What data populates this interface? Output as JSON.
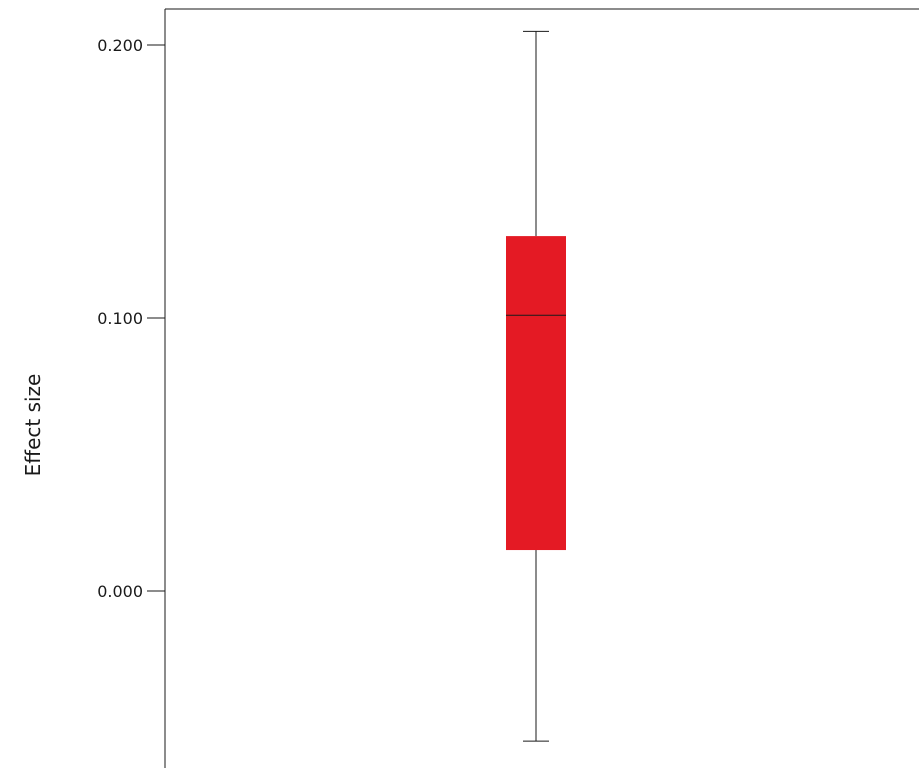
{
  "chart_data": {
    "type": "box",
    "title": "",
    "xlabel": "",
    "ylabel": "Effect size",
    "ylim": [
      -0.056,
      0.215
    ],
    "yticks": [
      0.0,
      0.1,
      0.2
    ],
    "ytick_labels": [
      "0.000",
      "0.100",
      "0.200"
    ],
    "grid": false,
    "boxes": [
      {
        "whisker_low": -0.055,
        "q1": 0.015,
        "median": 0.101,
        "q3": 0.13,
        "whisker_high": 0.205
      }
    ],
    "colors": {
      "box_fill": "#e41a24",
      "lines": "#1a1a1a",
      "frame": "#1a1a1a"
    }
  }
}
